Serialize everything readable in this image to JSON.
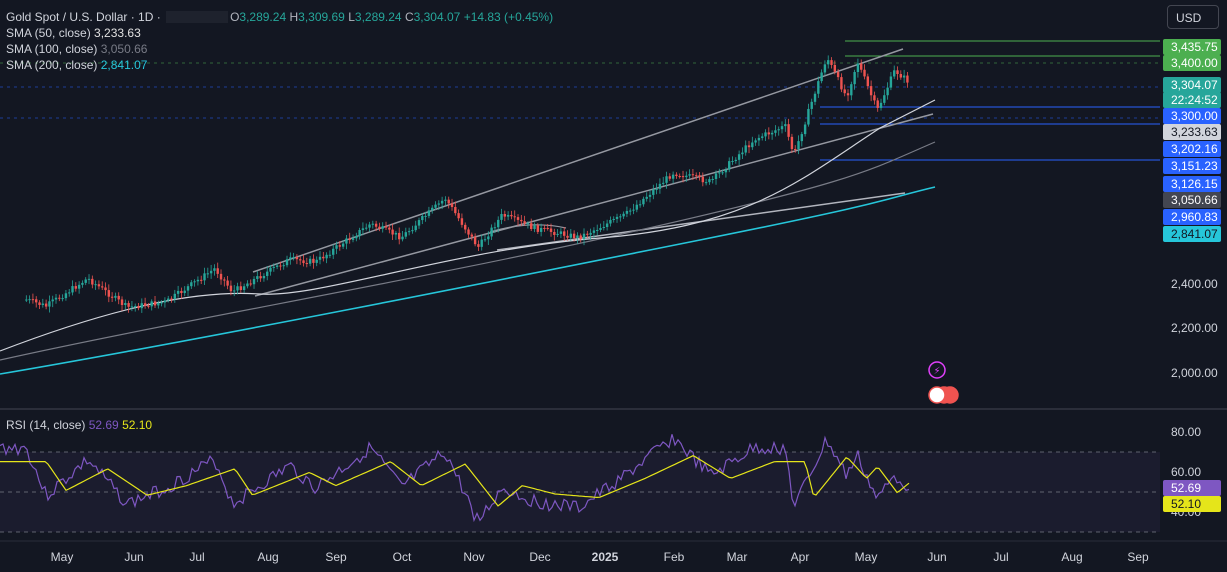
{
  "header": {
    "symbol": "Gold Spot / U.S. Dollar · 1D · ",
    "open_label": "O",
    "open": "3,289.24",
    "high_label": "H",
    "high": "3,309.69",
    "low_label": "L",
    "low": "3,289.24",
    "close_label": "C",
    "close": "3,304.07",
    "change": "+14.83 (+0.45%)"
  },
  "indicators": [
    {
      "label": "SMA (50, close)",
      "value": "3,233.63",
      "color": "#e0e0e0"
    },
    {
      "label": "SMA (100, close)",
      "value": "3,050.66",
      "color": "#9598a1"
    },
    {
      "label": "SMA (200, close)",
      "value": "2,841.07",
      "color": "#26c6da"
    }
  ],
  "currency_button": "USD",
  "rsi_legend": {
    "label": "RSI (14, close)",
    "rsi": "52.69",
    "ma": "52.10"
  },
  "colors": {
    "up": "#26a69a",
    "down": "#ef5350",
    "rsi": "#7e57c2",
    "rsi_ma": "#e5e51a",
    "blue_line": "#2962ff",
    "green_line": "#4caf50"
  },
  "chart_data": {
    "type": "candlestick",
    "x_axis_labels": [
      "May",
      "Jun",
      "Jul",
      "Aug",
      "Sep",
      "Oct",
      "Nov",
      "Dec",
      "2025",
      "Feb",
      "Mar",
      "Apr",
      "May",
      "Jun",
      "Jul",
      "Aug",
      "Sep"
    ],
    "price_ticks": [
      "2,400.00",
      "2,200.00",
      "2,000.00"
    ],
    "price_axis_tags": [
      {
        "text": "3,435.75",
        "bg": "#4caf50",
        "fg": "#ffffff"
      },
      {
        "text": "3,400.00",
        "bg": "#4caf50",
        "fg": "#ffffff"
      },
      {
        "text": "3,304.07",
        "bg": "#26a69a",
        "fg": "#ffffff"
      },
      {
        "text": "22:24:52",
        "bg": "#26a69a",
        "fg": "#ffffff"
      },
      {
        "text": "3,300.00",
        "bg": "#2962ff",
        "fg": "#ffffff"
      },
      {
        "text": "3,233.63",
        "bg": "#d1d4dc",
        "fg": "#131722"
      },
      {
        "text": "3,202.16",
        "bg": "#2962ff",
        "fg": "#ffffff"
      },
      {
        "text": "3,151.23",
        "bg": "#2962ff",
        "fg": "#ffffff"
      },
      {
        "text": "3,126.15",
        "bg": "#2962ff",
        "fg": "#ffffff"
      },
      {
        "text": "3,050.66",
        "bg": "#434651",
        "fg": "#ffffff"
      },
      {
        "text": "2,960.83",
        "bg": "#2962ff",
        "fg": "#ffffff"
      },
      {
        "text": "2,841.07",
        "bg": "#26c6da",
        "fg": "#131722"
      }
    ],
    "horizontal_levels": [
      3435.75,
      3400,
      3300,
      3202.16,
      3151.23,
      3126.15
    ],
    "rsi_ticks": [
      "80.00",
      "60.00",
      "40.00"
    ],
    "rsi_tags": [
      {
        "text": "52.69",
        "bg": "#7e57c2",
        "fg": "#ffffff"
      },
      {
        "text": "52.10",
        "bg": "#e5e51a",
        "fg": "#131722"
      }
    ],
    "close_path": [
      [
        "2024-04-22",
        2330
      ],
      [
        "2024-05-01",
        2300
      ],
      [
        "2024-05-20",
        2425
      ],
      [
        "2024-06-07",
        2295
      ],
      [
        "2024-06-25",
        2320
      ],
      [
        "2024-07-17",
        2470
      ],
      [
        "2024-07-25",
        2365
      ],
      [
        "2024-08-20",
        2510
      ],
      [
        "2024-09-01",
        2500
      ],
      [
        "2024-09-26",
        2670
      ],
      [
        "2024-10-10",
        2610
      ],
      [
        "2024-10-30",
        2785
      ],
      [
        "2024-11-14",
        2565
      ],
      [
        "2024-11-25",
        2710
      ],
      [
        "2024-12-10",
        2650
      ],
      [
        "2024-12-30",
        2610
      ],
      [
        "2025-01-20",
        2710
      ],
      [
        "2025-02-11",
        2900
      ],
      [
        "2025-02-28",
        2860
      ],
      [
        "2025-03-20",
        3050
      ],
      [
        "2025-04-03",
        3110
      ],
      [
        "2025-04-07",
        2980
      ],
      [
        "2025-04-22",
        3420
      ],
      [
        "2025-05-01",
        3240
      ],
      [
        "2025-05-06",
        3400
      ],
      [
        "2025-05-15",
        3180
      ],
      [
        "2025-05-23",
        3360
      ],
      [
        "2025-05-30",
        3304
      ]
    ],
    "rsi_path": [
      [
        "2024-04-22",
        72
      ],
      [
        "2024-05-01",
        48
      ],
      [
        "2024-05-20",
        66
      ],
      [
        "2024-06-07",
        44
      ],
      [
        "2024-06-25",
        52
      ],
      [
        "2024-07-17",
        66
      ],
      [
        "2024-07-25",
        44
      ],
      [
        "2024-08-20",
        63
      ],
      [
        "2024-09-01",
        52
      ],
      [
        "2024-09-26",
        72
      ],
      [
        "2024-10-10",
        52
      ],
      [
        "2024-10-30",
        70
      ],
      [
        "2024-11-14",
        35
      ],
      [
        "2024-11-25",
        52
      ],
      [
        "2024-12-10",
        45
      ],
      [
        "2024-12-30",
        42
      ],
      [
        "2025-01-20",
        58
      ],
      [
        "2025-02-11",
        77
      ],
      [
        "2025-02-28",
        58
      ],
      [
        "2025-03-20",
        72
      ],
      [
        "2025-04-03",
        72
      ],
      [
        "2025-04-07",
        42
      ],
      [
        "2025-04-22",
        76
      ],
      [
        "2025-05-01",
        58
      ],
      [
        "2025-05-06",
        68
      ],
      [
        "2025-05-15",
        46
      ],
      [
        "2025-05-23",
        58
      ],
      [
        "2025-05-30",
        52.69
      ]
    ]
  }
}
